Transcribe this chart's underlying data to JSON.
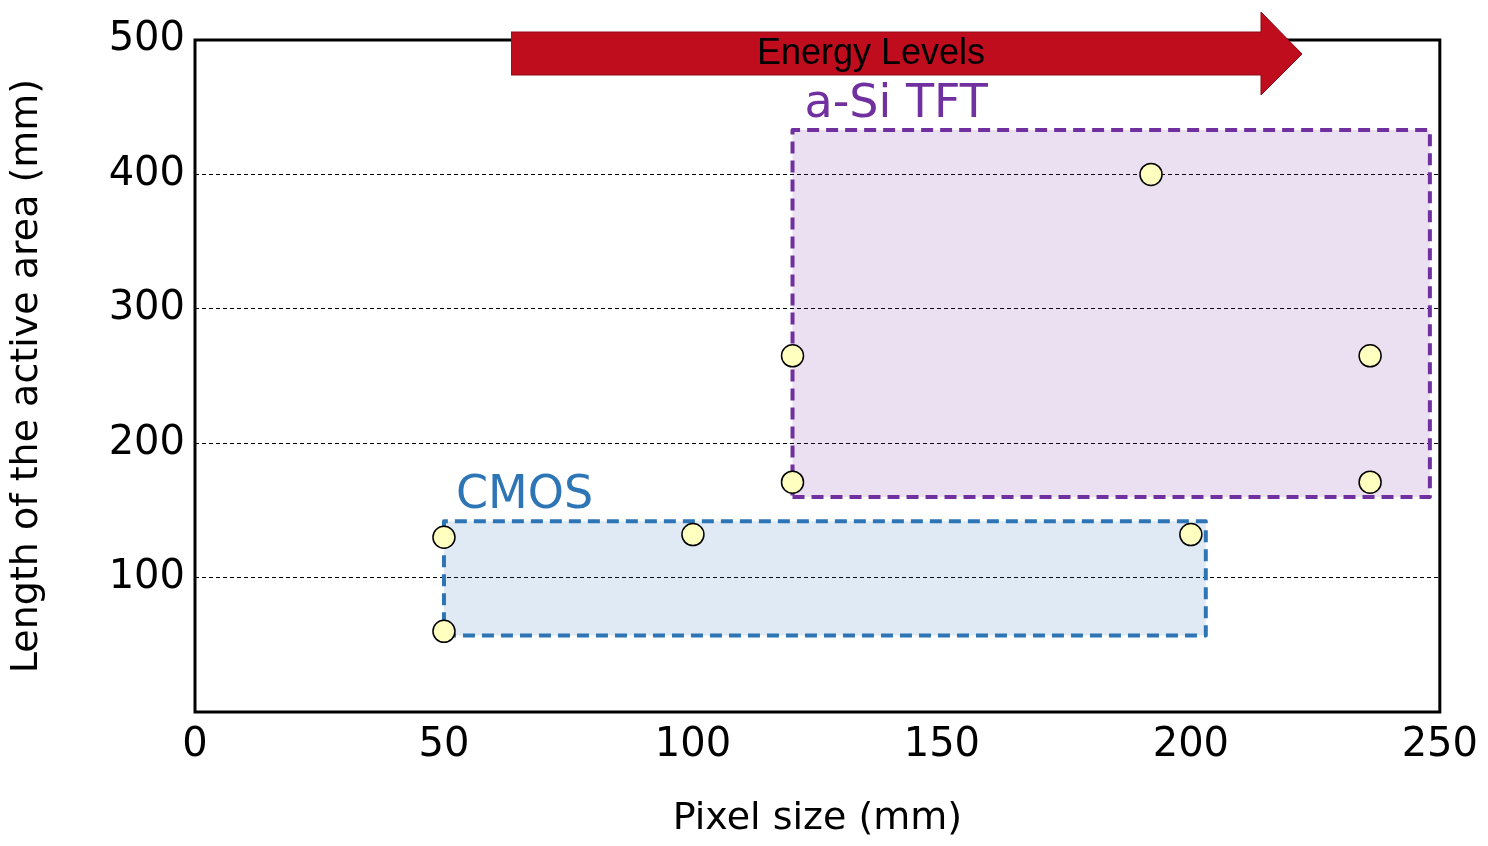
{
  "chart_data": {
    "type": "scatter",
    "xlabel": "Pixel size (mm)",
    "ylabel": "Length of the active area (mm)",
    "annotations": [
      "Energy Levels"
    ],
    "series": [
      {
        "type": "area",
        "name": "CMOS",
        "color": "#2e75b6",
        "line_style": "dashed",
        "x": [
          50,
          203,
          203,
          50,
          50
        ],
        "values": [
          57,
          57,
          142,
          142,
          57
        ]
      },
      {
        "type": "area",
        "name": "a-Si TFT",
        "color": "#7030a0",
        "line_style": "dashed",
        "x": [
          120,
          248,
          248,
          120,
          120
        ],
        "values": [
          160,
          160,
          433,
          433,
          160
        ]
      },
      {
        "color": "#ffffc0",
        "marker": "circle",
        "x": [
          50,
          50,
          100,
          200,
          120,
          120,
          192,
          236,
          236
        ],
        "values": [
          130,
          60,
          132,
          132,
          265,
          171,
          400,
          265,
          171
        ]
      }
    ],
    "xlim": [
      0,
      250
    ],
    "xticks": [
      0,
      50,
      100,
      150,
      200,
      250
    ],
    "ylim": [
      0,
      500
    ],
    "yticks": [
      100,
      200,
      300,
      400,
      500
    ],
    "grid": "y",
    "legend": false
  }
}
